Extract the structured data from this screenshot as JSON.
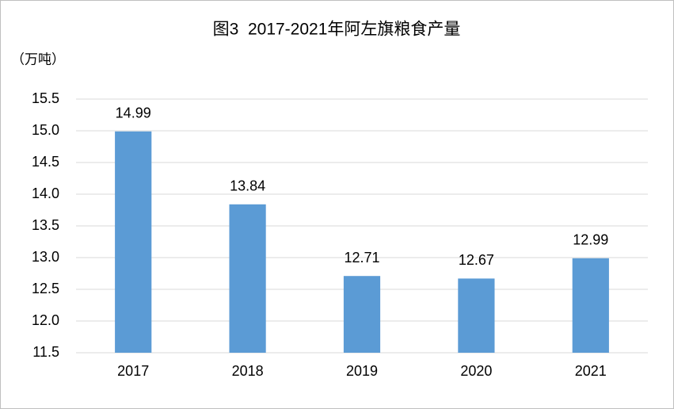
{
  "chart_data": {
    "type": "bar",
    "title": "图3  2017-2021年阿左旗粮食产量",
    "y_label": "（万吨）",
    "categories": [
      "2017",
      "2018",
      "2019",
      "2020",
      "2021"
    ],
    "values": [
      14.99,
      13.84,
      12.71,
      12.67,
      12.99
    ],
    "color": "#5b9bd5",
    "ylim": [
      11.5,
      15.5
    ],
    "yticks": [
      11.5,
      {
        "value": 12,
        "label": "12.0"
      },
      12.5,
      {
        "value": 13,
        "label": "13.0"
      },
      13.5,
      {
        "value": 14,
        "label": "14.0"
      },
      14.5,
      {
        "value": 15,
        "label": "15.0"
      },
      15.5
    ],
    "grid": true
  }
}
